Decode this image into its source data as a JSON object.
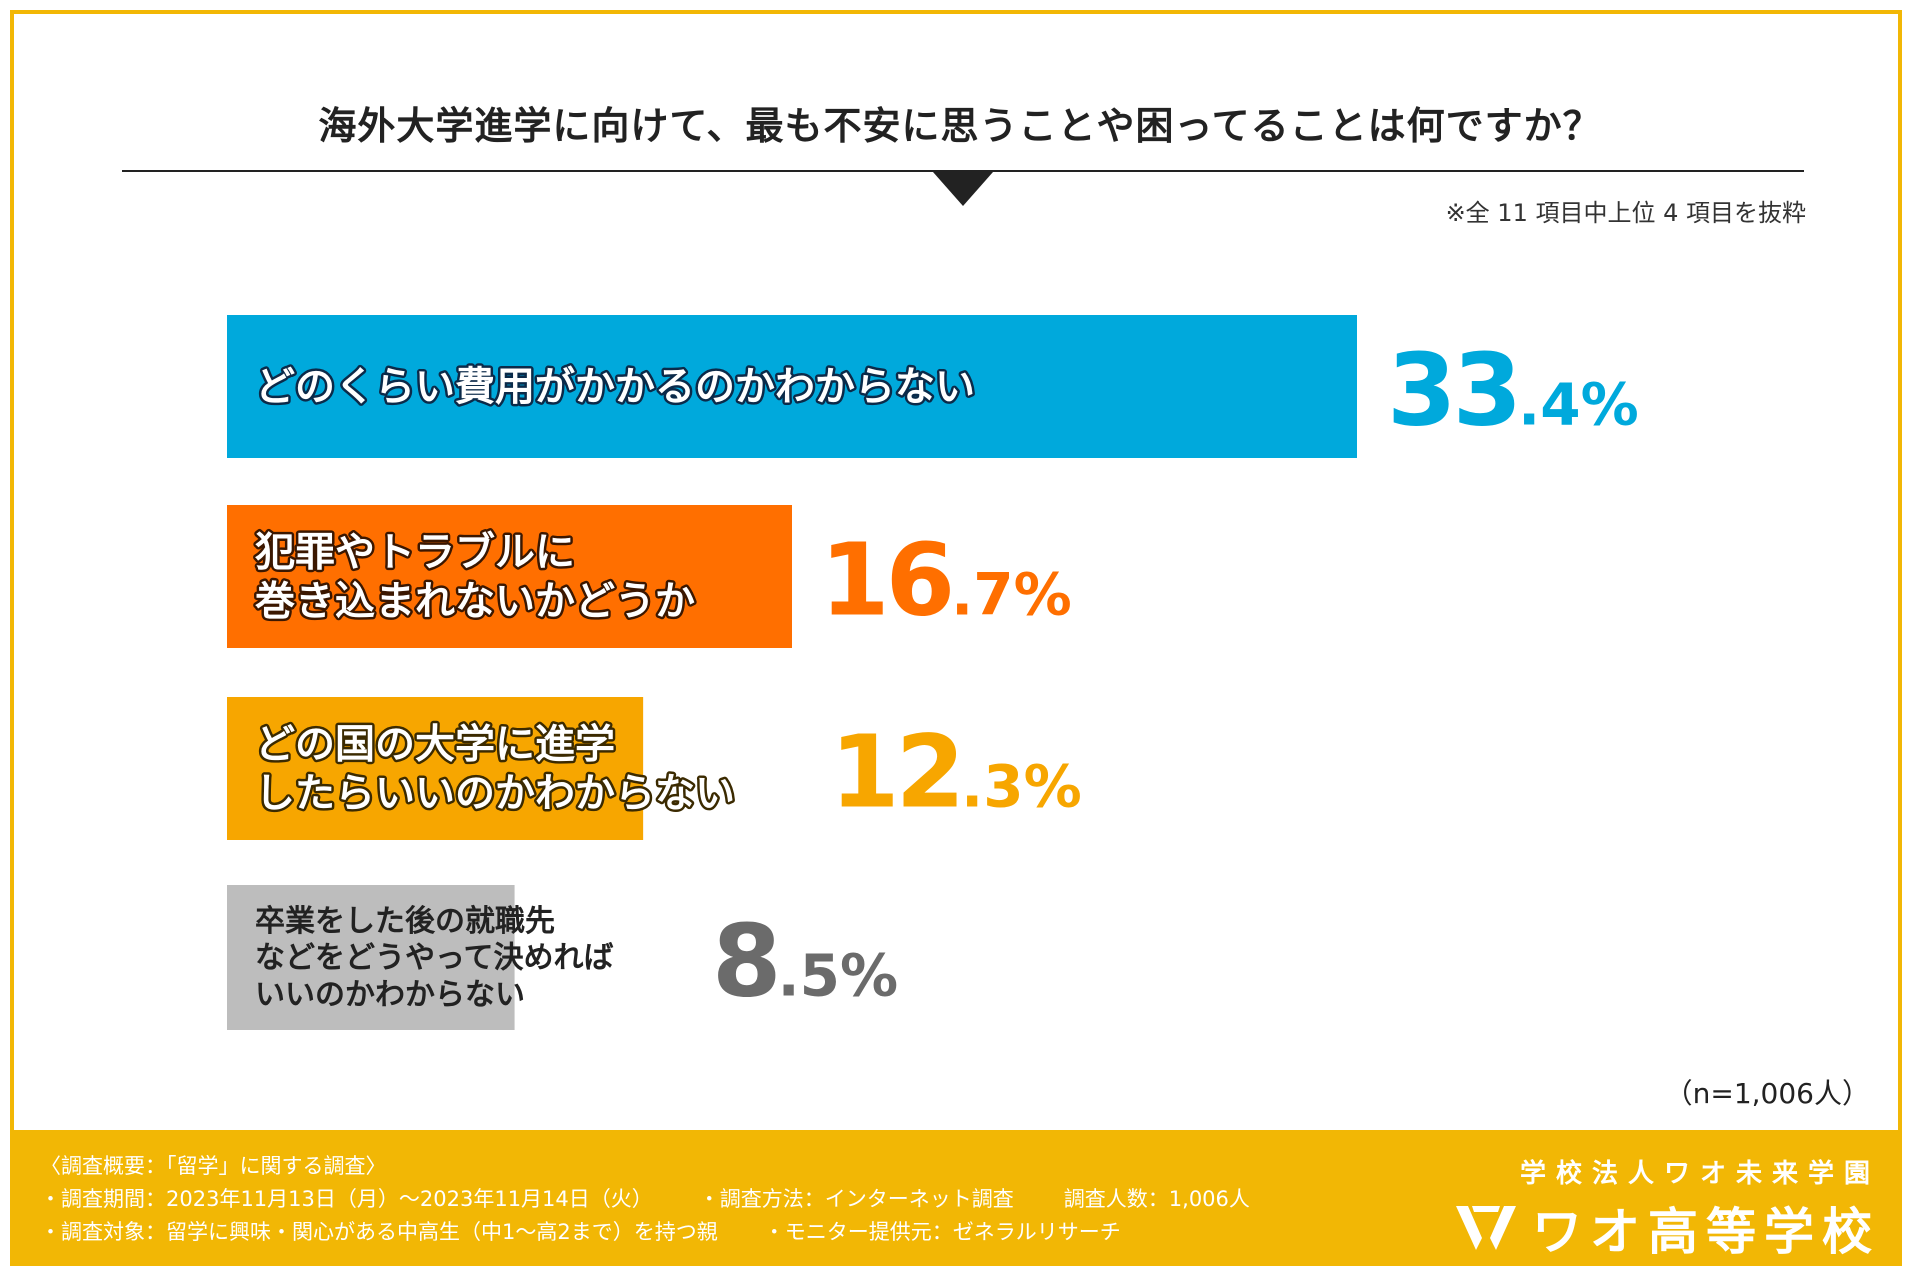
{
  "header": {
    "question": "海外大学進学に向けて、最も不安に思うことや困ってることは何ですか？",
    "note": "※全 11 項目中上位 4 項目を抜粋"
  },
  "chart_data": {
    "type": "bar",
    "orientation": "horizontal",
    "title": "海外大学進学に向けて、最も不安に思うことや困ってることは何ですか？",
    "unit": "%",
    "categories": [
      [
        "どのくらい費用がかかるのかわからない"
      ],
      [
        "犯罪やトラブルに",
        "巻き込まれないかどうか"
      ],
      [
        "どの国の大学に進学",
        "したらいいのかわからない"
      ],
      [
        "卒業をした後の就職先",
        "などをどうやって決めれば",
        "いいのかわからない"
      ]
    ],
    "values": [
      33.4,
      16.7,
      12.3,
      8.5
    ],
    "value_labels": [
      {
        "int": "33",
        "dec": ".4",
        "pct": "%"
      },
      {
        "int": "16",
        "dec": ".7",
        "pct": "%"
      },
      {
        "int": "12",
        "dec": ".3",
        "pct": "%"
      },
      {
        "int": "8",
        "dec": ".5",
        "pct": "%"
      }
    ],
    "colors": [
      "#00a9dc",
      "#ff6f00",
      "#f7a600",
      "#bdbdbd"
    ],
    "xlim": [
      0,
      33.4
    ]
  },
  "sample": "（n=1,006人）",
  "footer": {
    "overview": "〈調査概要：「留学」に関する調査〉",
    "period": "・調査期間：2023年11月13日（月）～2023年11月14日（火）",
    "method": "・調査方法：インターネット調査",
    "count": "調査人数：1,006人",
    "target": "・調査対象：留学に興味・関心がある中高生（中1～高2まで）を持つ親",
    "monitor": "・モニター提供元：ゼネラルリサーチ"
  },
  "brand": {
    "corporation": "学校法人ワオ未来学園",
    "school": "ワオ高等学校"
  }
}
